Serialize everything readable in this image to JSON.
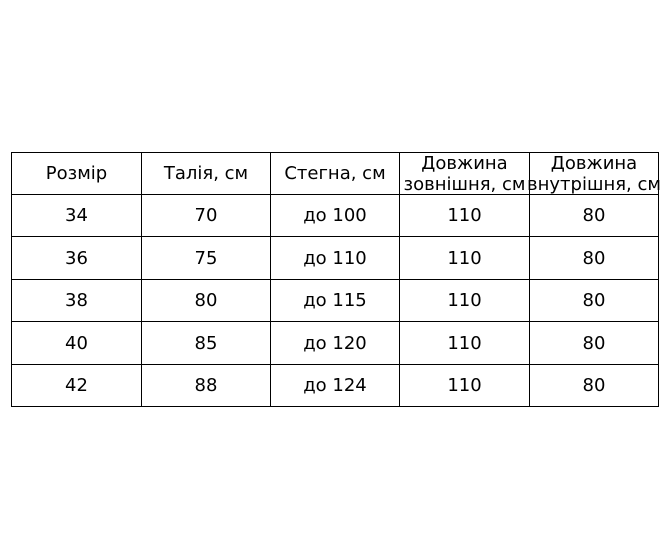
{
  "table": {
    "headers": [
      [
        "Розмір"
      ],
      [
        "Талія, см"
      ],
      [
        "Стегна, см"
      ],
      [
        "Довжина",
        "зовнішня, см"
      ],
      [
        "Довжина",
        "внутрішня, см"
      ]
    ],
    "rows": [
      [
        "34",
        "70",
        "до 100",
        "110",
        "80"
      ],
      [
        "36",
        "75",
        "до 110",
        "110",
        "80"
      ],
      [
        "38",
        "80",
        "до 115",
        "110",
        "80"
      ],
      [
        "40",
        "85",
        "до 120",
        "110",
        "80"
      ],
      [
        "42",
        "88",
        "до 124",
        "110",
        "80"
      ]
    ]
  }
}
